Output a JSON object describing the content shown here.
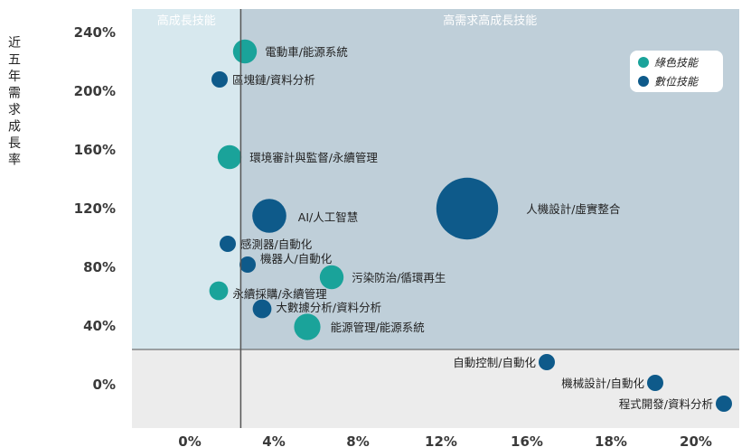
{
  "chart_data": {
    "type": "scatter",
    "title": "",
    "xlabel": "",
    "ylabel": "近五年需求成長率",
    "x_ticks": [
      "0%",
      "4%",
      "8%",
      "12%",
      "16%",
      "18%",
      "20%"
    ],
    "y_ticks": [
      "0%",
      "40%",
      "80%",
      "120%",
      "160%",
      "200%",
      "240%"
    ],
    "y_range": [
      -30,
      245
    ],
    "x_threshold": 2.4,
    "y_threshold": 24,
    "quadrants": {
      "top_left": "高成長技能",
      "top_right": "高需求高成長技能"
    },
    "legend_position": "top-right",
    "series": [
      {
        "name": "綠色技能",
        "color": "#1aa39a",
        "points": [
          {
            "label": "電動車/能源系統",
            "x": 2.5,
            "y": 227,
            "size": 1.0
          },
          {
            "label": "環境審計與監督/永續管理",
            "x": 1.8,
            "y": 155,
            "size": 1.0
          },
          {
            "label": "污染防治/循環再生",
            "x": 7.0,
            "y": 73,
            "size": 1.0
          },
          {
            "label": "永續採購/永續管理",
            "x": 1.4,
            "y": 64,
            "size": 0.8
          },
          {
            "label": "能源管理/能源系統",
            "x": 5.8,
            "y": 39,
            "size": 1.1
          }
        ]
      },
      {
        "name": "數位技能",
        "color": "#0e5a8a",
        "points": [
          {
            "label": "區塊鏈/資料分析",
            "x": 1.4,
            "y": 208,
            "size": 0.7
          },
          {
            "label": "AI/人工智慧",
            "x": 3.8,
            "y": 115,
            "size": 1.4
          },
          {
            "label": "人機設計/虛實整合",
            "x": 13.0,
            "y": 119,
            "size": 2.5
          },
          {
            "label": "感測器/自動化",
            "x": 1.8,
            "y": 96,
            "size": 0.7
          },
          {
            "label": "機器人/自動化",
            "x": 3.1,
            "y": 81,
            "size": 0.7
          },
          {
            "label": "大數據分析/資料分析",
            "x": 3.5,
            "y": 51,
            "size": 0.8
          },
          {
            "label": "自動控制/自動化",
            "x": 16.0,
            "y": 15,
            "size": 0.7
          },
          {
            "label": "機械設計/自動化",
            "x": 19.0,
            "y": 1,
            "size": 0.7
          },
          {
            "label": "程式開發/資料分析",
            "x": 21.0,
            "y": -13,
            "size": 0.7
          }
        ]
      }
    ]
  }
}
